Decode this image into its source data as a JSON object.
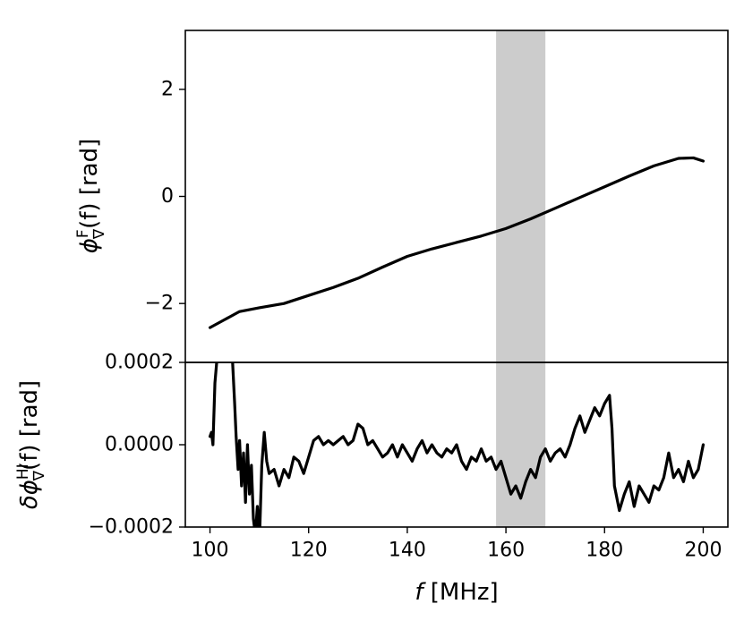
{
  "chart_data": [
    {
      "type": "line",
      "panel": "top",
      "title": "",
      "xlabel": "",
      "ylabel_parts": {
        "main": "ϕ",
        "sup": "F",
        "sub": "∇",
        "tail": "(f) [rad]"
      },
      "xlim": [
        95,
        205
      ],
      "ylim": [
        -3.1,
        3.1
      ],
      "yticks": [
        2,
        0,
        -2
      ],
      "ytick_labels": [
        "2",
        "0",
        "−2"
      ],
      "shaded_band": {
        "x_from": 158,
        "x_to": 168,
        "color": "#cccccc"
      },
      "series_color": "#000000",
      "series": [
        {
          "x": [
            100,
            103,
            106,
            110,
            115,
            120,
            125,
            130,
            135,
            140,
            145,
            150,
            155,
            160,
            165,
            170,
            175,
            180,
            185,
            190,
            195,
            198,
            200
          ],
          "values": [
            -2.45,
            -2.3,
            -2.15,
            -2.08,
            -2.0,
            -1.85,
            -1.7,
            -1.53,
            -1.32,
            -1.12,
            -0.98,
            -0.86,
            -0.74,
            -0.6,
            -0.42,
            -0.22,
            -0.02,
            0.18,
            0.38,
            0.57,
            0.71,
            0.72,
            0.66
          ]
        }
      ]
    },
    {
      "type": "line",
      "panel": "bottom",
      "title": "",
      "xlabel_parts": {
        "main": "f",
        "tail": " [MHz]"
      },
      "ylabel_parts": {
        "main": "δϕ",
        "sup": "HI",
        "sub": "∇",
        "tail": "(f) [rad]"
      },
      "xlim": [
        95,
        205
      ],
      "ylim": [
        -0.0002,
        0.0002
      ],
      "xticks": [
        100,
        120,
        140,
        160,
        180,
        200
      ],
      "xtick_labels": [
        "100",
        "120",
        "140",
        "160",
        "180",
        "200"
      ],
      "yticks": [
        0.0002,
        0.0,
        -0.0002
      ],
      "ytick_labels": [
        "0.0002",
        "0.0000",
        "−0.0002"
      ],
      "shaded_band": {
        "x_from": 158,
        "x_to": 168,
        "color": "#cccccc"
      },
      "series_color": "#000000",
      "series": [
        {
          "x": [
            100,
            100.3,
            100.6,
            101,
            101.5,
            102,
            102.5,
            103,
            103.5,
            104,
            104.5,
            105,
            105.3,
            105.7,
            106,
            106.4,
            106.8,
            107.2,
            107.6,
            108,
            108.4,
            108.8,
            109.2,
            109.6,
            110,
            110.5,
            111,
            111.5,
            112,
            113,
            114,
            115,
            116,
            117,
            118,
            119,
            120,
            121,
            122,
            123,
            124,
            125,
            126,
            127,
            128,
            129,
            130,
            131,
            132,
            133,
            134,
            135,
            136,
            137,
            138,
            139,
            140,
            141,
            142,
            143,
            144,
            145,
            146,
            147,
            148,
            149,
            150,
            151,
            152,
            153,
            154,
            155,
            156,
            157,
            158,
            159,
            160,
            161,
            162,
            163,
            164,
            165,
            166,
            167,
            168,
            169,
            170,
            171,
            172,
            173,
            174,
            175,
            176,
            177,
            178,
            179,
            180,
            181,
            181.5,
            182,
            183,
            184,
            185,
            186,
            187,
            188,
            189,
            190,
            191,
            192,
            193,
            194,
            195,
            196,
            197,
            198,
            199,
            200
          ],
          "values": [
            2e-05,
            3e-05,
            0.0,
            0.00015,
            0.00022,
            0.00025,
            0.00025,
            0.00025,
            0.00025,
            0.00025,
            0.00022,
            0.0001,
            2e-05,
            -6e-05,
            1e-05,
            -0.0001,
            -2e-05,
            -0.00014,
            0.0,
            -0.00012,
            -5e-05,
            -0.00018,
            -0.00022,
            -0.00015,
            -0.00025,
            -5e-05,
            3e-05,
            -4e-05,
            -7e-05,
            -6e-05,
            -0.0001,
            -6e-05,
            -8e-05,
            -3e-05,
            -4e-05,
            -7e-05,
            -3e-05,
            1e-05,
            2e-05,
            0.0,
            1e-05,
            0.0,
            1e-05,
            2e-05,
            0.0,
            1e-05,
            5e-05,
            4e-05,
            0.0,
            1e-05,
            -1e-05,
            -3e-05,
            -2e-05,
            0.0,
            -3e-05,
            0.0,
            -2e-05,
            -4e-05,
            -1e-05,
            1e-05,
            -2e-05,
            0.0,
            -2e-05,
            -3e-05,
            -1e-05,
            -2e-05,
            0.0,
            -4e-05,
            -6e-05,
            -3e-05,
            -4e-05,
            -1e-05,
            -4e-05,
            -3e-05,
            -6e-05,
            -4e-05,
            -8e-05,
            -0.00012,
            -0.0001,
            -0.00013,
            -9e-05,
            -6e-05,
            -8e-05,
            -3e-05,
            -1e-05,
            -4e-05,
            -2e-05,
            -1e-05,
            -3e-05,
            0.0,
            4e-05,
            7e-05,
            3e-05,
            6e-05,
            9e-05,
            7e-05,
            0.0001,
            0.00012,
            4e-05,
            -0.0001,
            -0.00016,
            -0.00012,
            -9e-05,
            -0.00015,
            -0.0001,
            -0.00012,
            -0.00014,
            -0.0001,
            -0.00011,
            -8e-05,
            -2e-05,
            -8e-05,
            -6e-05,
            -9e-05,
            -4e-05,
            -8e-05,
            -6e-05,
            0.0
          ]
        }
      ]
    }
  ]
}
